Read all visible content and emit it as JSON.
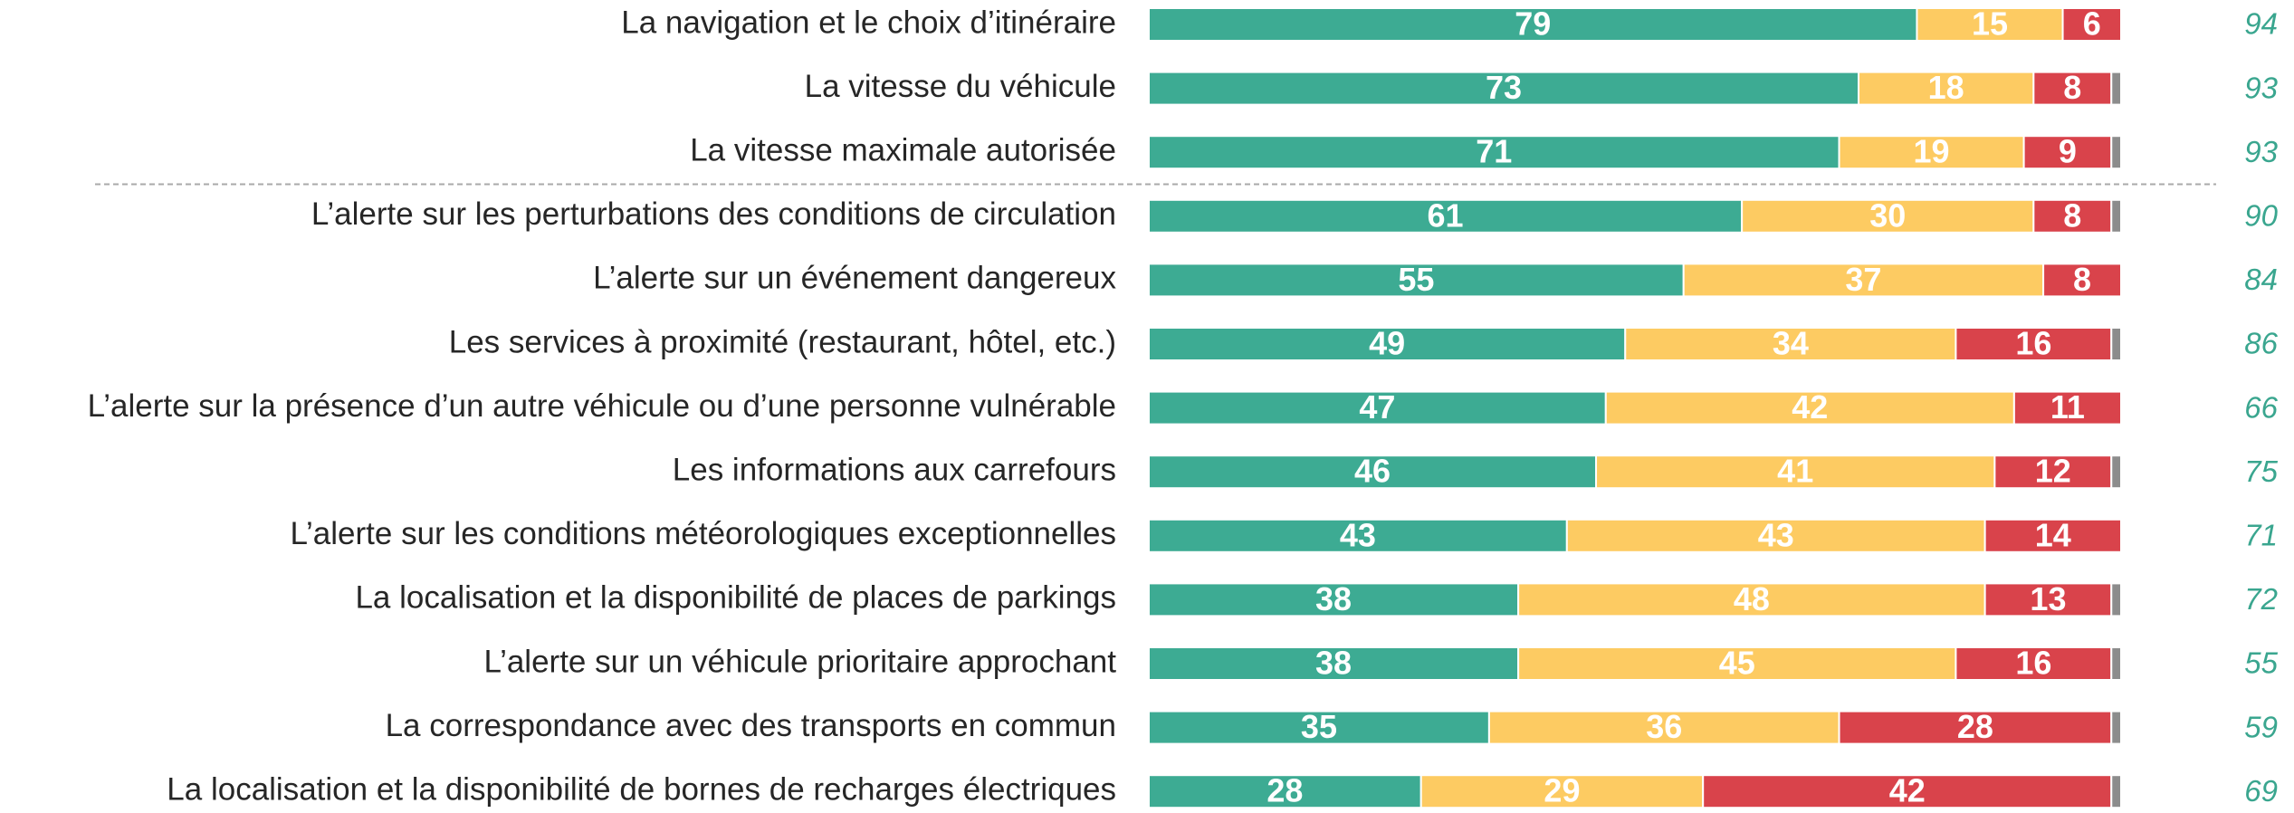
{
  "chart_data": {
    "type": "stacked-barh",
    "categories": [
      "La navigation et le choix d’itinéraire",
      "La vitesse du véhicule",
      "La vitesse maximale autorisée",
      "L’alerte sur les perturbations des conditions de circulation",
      "L’alerte sur un événement dangereux",
      "Les services à proximité (restaurant, hôtel, etc.)",
      "L’alerte sur la présence d’un autre véhicule ou d’une personne vulnérable",
      "Les informations aux carrefours",
      "L’alerte sur les conditions météorologiques exceptionnelles",
      "La localisation et la disponibilité de places de parkings",
      "L’alerte sur un véhicule prioritaire approchant",
      "La correspondance avec des transports en commun",
      "La localisation et la disponibilité de bornes de recharges électriques"
    ],
    "series": [
      {
        "color": "#3dab93",
        "values": [
          79,
          73,
          71,
          61,
          55,
          49,
          47,
          46,
          43,
          38,
          38,
          35,
          28
        ]
      },
      {
        "color": "#fdcb62",
        "values": [
          15,
          18,
          19,
          30,
          37,
          34,
          42,
          41,
          43,
          48,
          45,
          36,
          29
        ]
      },
      {
        "color": "#d9434b",
        "values": [
          6,
          8,
          9,
          8,
          8,
          16,
          11,
          12,
          14,
          13,
          16,
          28,
          42
        ]
      },
      {
        "color": "#8c8c8c",
        "values": [
          null,
          1,
          1,
          1,
          null,
          1,
          null,
          1,
          null,
          1,
          1,
          1,
          1
        ]
      }
    ],
    "labeled_series": 3,
    "right_values": [
      94,
      93,
      93,
      90,
      84,
      86,
      66,
      75,
      71,
      72,
      55,
      59,
      69
    ],
    "right_color": "#3aa68f",
    "separator_after": 2,
    "xlim": [
      0,
      100
    ]
  }
}
